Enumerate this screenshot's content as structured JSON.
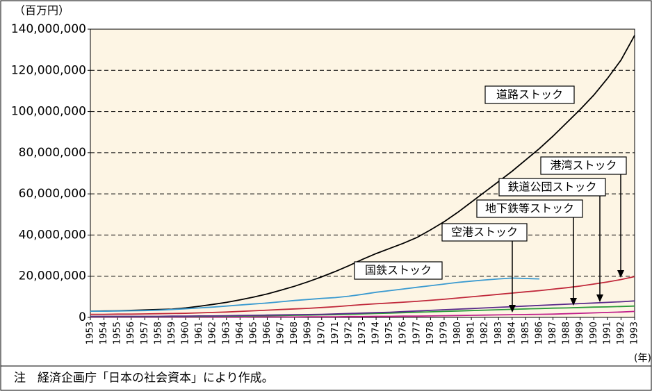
{
  "chart_data": {
    "type": "line",
    "y_unit": "（百万円）",
    "x_unit": "(年)",
    "note": "注　経済企画庁「日本の社会資本」により作成。",
    "x": [
      1953,
      1954,
      1955,
      1956,
      1957,
      1958,
      1959,
      1960,
      1961,
      1962,
      1963,
      1964,
      1965,
      1966,
      1967,
      1968,
      1969,
      1970,
      1971,
      1972,
      1973,
      1974,
      1975,
      1976,
      1977,
      1978,
      1979,
      1980,
      1981,
      1982,
      1983,
      1984,
      1985,
      1986,
      1987,
      1988,
      1989,
      1990,
      1991,
      1992,
      1993
    ],
    "xlim": [
      1953,
      1993
    ],
    "ylim": [
      0,
      140000000
    ],
    "yticks": [
      0,
      {
        "value": 20000000,
        "label": "20,000,000"
      },
      {
        "value": 40000000,
        "label": "40,000,000"
      },
      {
        "value": 60000000,
        "label": "60,000,000"
      },
      {
        "value": 80000000,
        "label": "80,000,000"
      },
      {
        "value": 100000000,
        "label": "100,000,000"
      },
      {
        "value": 120000000,
        "label": "120,000,000"
      },
      {
        "value": 140000000,
        "label": "140,000,000"
      }
    ],
    "grid": true,
    "series": [
      {
        "name": "道路ストック",
        "color": "#000000",
        "values": [
          3000000,
          3100000,
          3200000,
          3400000,
          3600000,
          3800000,
          4000000,
          4600000,
          5400000,
          6300000,
          7300000,
          8500000,
          9900000,
          11400000,
          13200000,
          15100000,
          17300000,
          19700000,
          22300000,
          25100000,
          28200000,
          31000000,
          33500000,
          36000000,
          38800000,
          42500000,
          46500000,
          51000000,
          56000000,
          61000000,
          66000000,
          71000000,
          76500000,
          82000000,
          88000000,
          94500000,
          101000000,
          108000000,
          116000000,
          125000000,
          137000000
        ]
      },
      {
        "name": "国鉄ストック",
        "color": "#3a9ad0",
        "values": [
          3000000,
          3000000,
          3100000,
          3200000,
          3300000,
          3500000,
          3800000,
          4200000,
          4600000,
          5000000,
          5500000,
          6000000,
          6500000,
          7000000,
          7600000,
          8200000,
          8700000,
          9200000,
          9600000,
          10300000,
          11200000,
          12200000,
          13000000,
          13800000,
          14600000,
          15400000,
          16200000,
          17000000,
          17600000,
          18200000,
          18700000,
          19100000,
          18900000,
          18700000,
          null,
          null,
          null,
          null,
          null,
          null,
          null
        ]
      },
      {
        "name": "空港ストック",
        "color": "#c0208a",
        "values": [
          100000,
          100000,
          100000,
          100000,
          100000,
          100000,
          100000,
          100000,
          100000,
          100000,
          100000,
          100000,
          200000,
          200000,
          200000,
          200000,
          300000,
          300000,
          300000,
          400000,
          400000,
          500000,
          500000,
          600000,
          600000,
          700000,
          800000,
          900000,
          1000000,
          1100000,
          1200000,
          1300000,
          1400000,
          1500000,
          1600000,
          1800000,
          2000000,
          2200000,
          2400000,
          2600000,
          2900000
        ]
      },
      {
        "name": "地下鉄等ストック",
        "color": "#2a9a3a",
        "values": [
          300000,
          300000,
          300000,
          300000,
          300000,
          300000,
          400000,
          400000,
          400000,
          500000,
          500000,
          600000,
          700000,
          800000,
          900000,
          1000000,
          1100000,
          1200000,
          1300000,
          1500000,
          1700000,
          1900000,
          2100000,
          2300000,
          2500000,
          2700000,
          2900000,
          3100000,
          3300000,
          3500000,
          3700000,
          3900000,
          4100000,
          4300000,
          4500000,
          4600000,
          4800000,
          5000000,
          5100000,
          5300000,
          5500000
        ]
      },
      {
        "name": "鉄道公団ストック",
        "color": "#5a2a8a",
        "values": [
          500000,
          500000,
          500000,
          500000,
          500000,
          500000,
          600000,
          600000,
          700000,
          700000,
          800000,
          900000,
          1000000,
          1100000,
          1200000,
          1300000,
          1400000,
          1500000,
          1700000,
          1900000,
          2100000,
          2300000,
          2500000,
          2800000,
          3100000,
          3400000,
          3700000,
          4000000,
          4300000,
          4600000,
          4900000,
          5200000,
          5500000,
          5800000,
          6100000,
          6400000,
          6700000,
          7000000,
          7300000,
          7600000,
          8000000
        ]
      },
      {
        "name": "港湾ストック",
        "color": "#c0283a",
        "values": [
          1500000,
          1500000,
          1600000,
          1600000,
          1700000,
          1800000,
          1900000,
          2000000,
          2200000,
          2400000,
          2600000,
          2900000,
          3200000,
          3500000,
          3800000,
          4100000,
          4400000,
          4800000,
          5200000,
          5700000,
          6200000,
          6600000,
          7000000,
          7400000,
          7800000,
          8300000,
          8800000,
          9400000,
          10000000,
          10600000,
          11200000,
          11800000,
          12400000,
          13000000,
          13700000,
          14400000,
          15200000,
          16200000,
          17200000,
          18400000,
          19800000
        ]
      }
    ]
  }
}
